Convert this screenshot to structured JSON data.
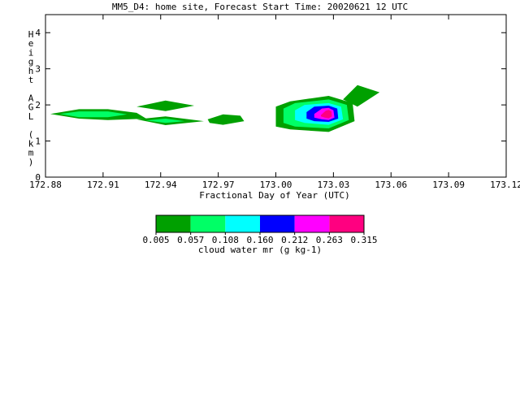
{
  "chart_data": {
    "type": "contour",
    "title": "MM5_D4: home site,  Forecast Start Time: 20020621 12 UTC",
    "xlabel": "Fractional Day of Year (UTC)",
    "ylabel": "Height AGL (km)",
    "xlim": [
      172.88,
      173.12
    ],
    "ylim": [
      0,
      4.5
    ],
    "x_ticks": [
      "172.88",
      "172.91",
      "172.94",
      "172.97",
      "173.00",
      "173.03",
      "173.06",
      "173.09",
      "173.12"
    ],
    "y_ticks": [
      "0",
      "1",
      "2",
      "3",
      "4"
    ],
    "colorbar": {
      "label": "cloud water mr (g kg-1)",
      "levels": [
        "0.005",
        "0.057",
        "0.108",
        "0.160",
        "0.212",
        "0.263",
        "0.315"
      ],
      "colors": [
        "#00a000",
        "#00ff66",
        "#00ffff",
        "#0000ff",
        "#ff00ff",
        "#ff0080"
      ]
    },
    "regions": [
      {
        "level": 0,
        "points": [
          [
            172.8825,
            1.75
          ],
          [
            172.8975,
            1.88
          ],
          [
            172.9125,
            1.88
          ],
          [
            172.9275,
            1.78
          ],
          [
            172.9325,
            1.62
          ],
          [
            172.9125,
            1.58
          ],
          [
            172.8975,
            1.62
          ]
        ]
      },
      {
        "level": 1,
        "points": [
          [
            172.8875,
            1.75
          ],
          [
            172.8975,
            1.82
          ],
          [
            172.9125,
            1.82
          ],
          [
            172.9225,
            1.74
          ],
          [
            172.9125,
            1.66
          ],
          [
            172.8975,
            1.66
          ]
        ]
      },
      {
        "level": 0,
        "points": [
          [
            172.9275,
            1.95
          ],
          [
            172.9425,
            2.12
          ],
          [
            172.9575,
            1.98
          ],
          [
            172.9425,
            1.83
          ]
        ]
      },
      {
        "level": 0,
        "points": [
          [
            172.9275,
            1.6
          ],
          [
            172.9425,
            1.68
          ],
          [
            172.9625,
            1.55
          ],
          [
            172.9425,
            1.44
          ]
        ]
      },
      {
        "level": 1,
        "points": [
          [
            172.9325,
            1.57
          ],
          [
            172.9425,
            1.62
          ],
          [
            172.9525,
            1.55
          ],
          [
            172.9425,
            1.5
          ]
        ]
      },
      {
        "level": 0,
        "points": [
          [
            172.9645,
            1.6
          ],
          [
            172.9725,
            1.74
          ],
          [
            172.9815,
            1.7
          ],
          [
            172.9835,
            1.55
          ],
          [
            172.9725,
            1.45
          ],
          [
            172.9655,
            1.5
          ]
        ]
      },
      {
        "level": 0,
        "points": [
          [
            173.0,
            1.95
          ],
          [
            173.0075,
            2.1
          ],
          [
            173.0275,
            2.25
          ],
          [
            173.04,
            2.05
          ],
          [
            173.041,
            1.55
          ],
          [
            173.0275,
            1.25
          ],
          [
            173.0075,
            1.32
          ],
          [
            173.0,
            1.4
          ]
        ]
      },
      {
        "level": 1,
        "points": [
          [
            173.004,
            1.9
          ],
          [
            173.01,
            2.05
          ],
          [
            173.0275,
            2.15
          ],
          [
            173.037,
            2.0
          ],
          [
            173.038,
            1.58
          ],
          [
            173.0275,
            1.35
          ],
          [
            173.01,
            1.4
          ],
          [
            173.004,
            1.5
          ]
        ]
      },
      {
        "level": 2,
        "points": [
          [
            173.01,
            1.85
          ],
          [
            173.015,
            2.0
          ],
          [
            173.0275,
            2.05
          ],
          [
            173.034,
            1.95
          ],
          [
            173.035,
            1.6
          ],
          [
            173.0275,
            1.45
          ],
          [
            173.015,
            1.5
          ],
          [
            173.01,
            1.58
          ]
        ]
      },
      {
        "level": 3,
        "points": [
          [
            173.016,
            1.8
          ],
          [
            173.02,
            1.95
          ],
          [
            173.0275,
            1.98
          ],
          [
            173.032,
            1.9
          ],
          [
            173.0325,
            1.62
          ],
          [
            173.0275,
            1.53
          ],
          [
            173.02,
            1.55
          ],
          [
            173.016,
            1.62
          ]
        ]
      },
      {
        "level": 4,
        "points": [
          [
            173.02,
            1.75
          ],
          [
            173.024,
            1.9
          ],
          [
            173.0275,
            1.92
          ],
          [
            173.03,
            1.85
          ],
          [
            173.0305,
            1.65
          ],
          [
            173.0275,
            1.58
          ],
          [
            173.024,
            1.6
          ],
          [
            173.02,
            1.65
          ]
        ]
      },
      {
        "level": 5,
        "points": [
          [
            173.0235,
            1.72
          ],
          [
            173.026,
            1.84
          ],
          [
            173.0275,
            1.86
          ],
          [
            173.029,
            1.82
          ],
          [
            173.0292,
            1.68
          ],
          [
            173.0275,
            1.63
          ],
          [
            173.0255,
            1.65
          ],
          [
            173.0235,
            1.68
          ]
        ]
      },
      {
        "level": 0,
        "points": [
          [
            173.035,
            2.15
          ],
          [
            173.0425,
            2.55
          ],
          [
            173.054,
            2.35
          ],
          [
            173.0425,
            1.95
          ]
        ]
      }
    ]
  }
}
